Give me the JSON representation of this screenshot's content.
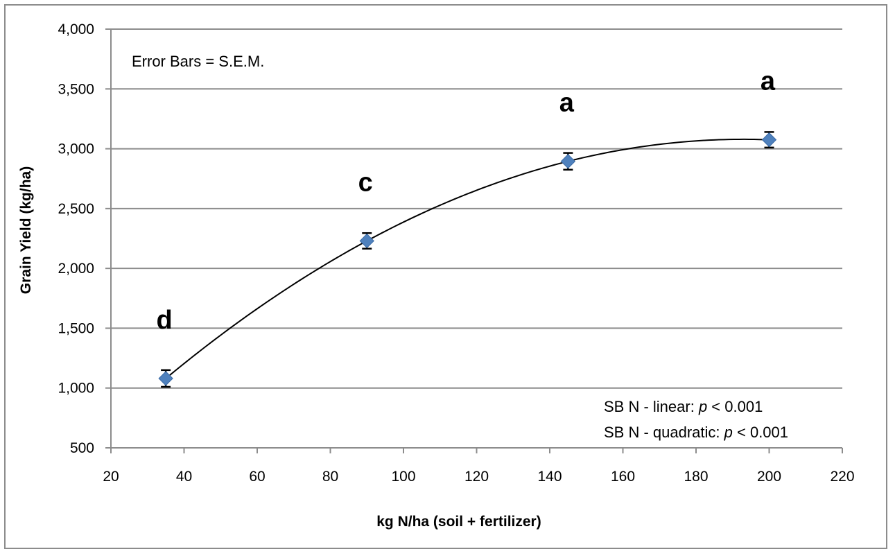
{
  "chart_data": {
    "type": "scatter",
    "title": "",
    "xlabel": "kg N/ha (soil + fertilizer)",
    "ylabel": "Grain Yield (kg/ha)",
    "xlim": [
      20,
      220
    ],
    "ylim": [
      500,
      4000
    ],
    "x_ticks": [
      20,
      40,
      60,
      80,
      100,
      120,
      140,
      160,
      180,
      200,
      220
    ],
    "y_ticks": [
      500,
      1000,
      1500,
      2000,
      2500,
      3000,
      3500,
      4000
    ],
    "y_tick_labels": [
      "500",
      "1,000",
      "1,500",
      "2,000",
      "2,500",
      "3,000",
      "3,500",
      "4,000"
    ],
    "grid": "horizontal",
    "series": [
      {
        "x": [
          35,
          90,
          145,
          200
        ],
        "y": [
          1080,
          2230,
          2895,
          3075
        ],
        "error": [
          70,
          65,
          70,
          65
        ],
        "letters": [
          "d",
          "c",
          "a",
          "a"
        ],
        "marker": "diamond",
        "color": "#4f81bd"
      }
    ],
    "trendline": {
      "type": "quadratic",
      "color": "#000000"
    },
    "annotations": {
      "error_note": "Error Bars = S.E.M.",
      "stats": [
        {
          "prefix": "SB N - linear: ",
          "variable": "p",
          "suffix": " < 0.001"
        },
        {
          "prefix": "SB N - quadratic: ",
          "variable": "p",
          "suffix": " < 0.001"
        }
      ]
    }
  }
}
